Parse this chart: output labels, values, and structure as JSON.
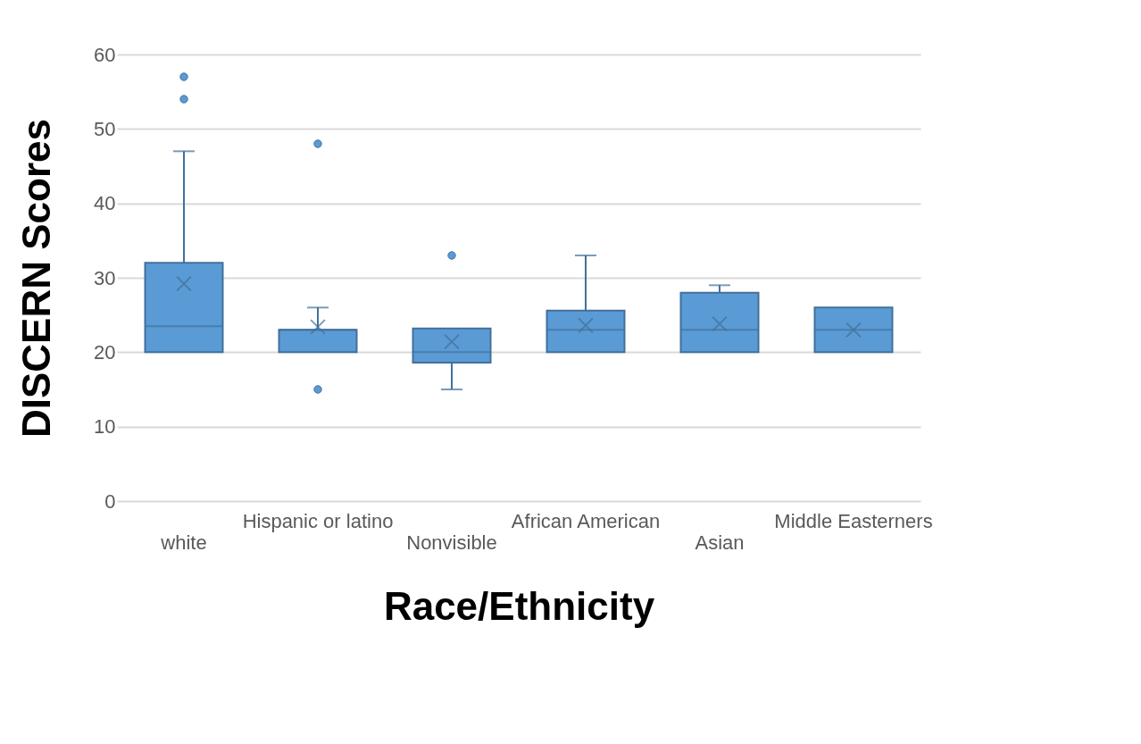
{
  "chart_data": {
    "type": "box",
    "xlabel": "Race/Ethnicity",
    "ylabel": "DISCERN Scores",
    "categories": [
      "white",
      "Hispanic or latino",
      "Nonvisible",
      "African American",
      "Asian",
      "Middle Easterners"
    ],
    "boxes": [
      {
        "low": 20,
        "q1": 20,
        "median": 23.5,
        "q3": 32,
        "high": 47,
        "mean": 29.2,
        "outliers": [
          54,
          57
        ]
      },
      {
        "low": 20,
        "q1": 20,
        "median": 23,
        "q3": 23,
        "high": 26,
        "mean": 23.4,
        "outliers": [
          48,
          15
        ]
      },
      {
        "low": 15,
        "q1": 18.6,
        "median": 20,
        "q3": 23.2,
        "high": 23.2,
        "mean": 21.4,
        "outliers": [
          33
        ]
      },
      {
        "low": 20,
        "q1": 20,
        "median": 23,
        "q3": 25.6,
        "high": 33,
        "mean": 23.6
      },
      {
        "low": 20,
        "q1": 20,
        "median": 23,
        "q3": 28,
        "high": 29,
        "mean": 23.8
      },
      {
        "low": 20,
        "q1": 20,
        "median": 23,
        "q3": 26,
        "high": 26,
        "mean": 23
      }
    ],
    "color": "#5b9bd5",
    "ylim": [
      0,
      60
    ],
    "yticks": [
      0,
      10,
      20,
      30,
      40,
      50,
      60
    ],
    "grid": "y"
  }
}
